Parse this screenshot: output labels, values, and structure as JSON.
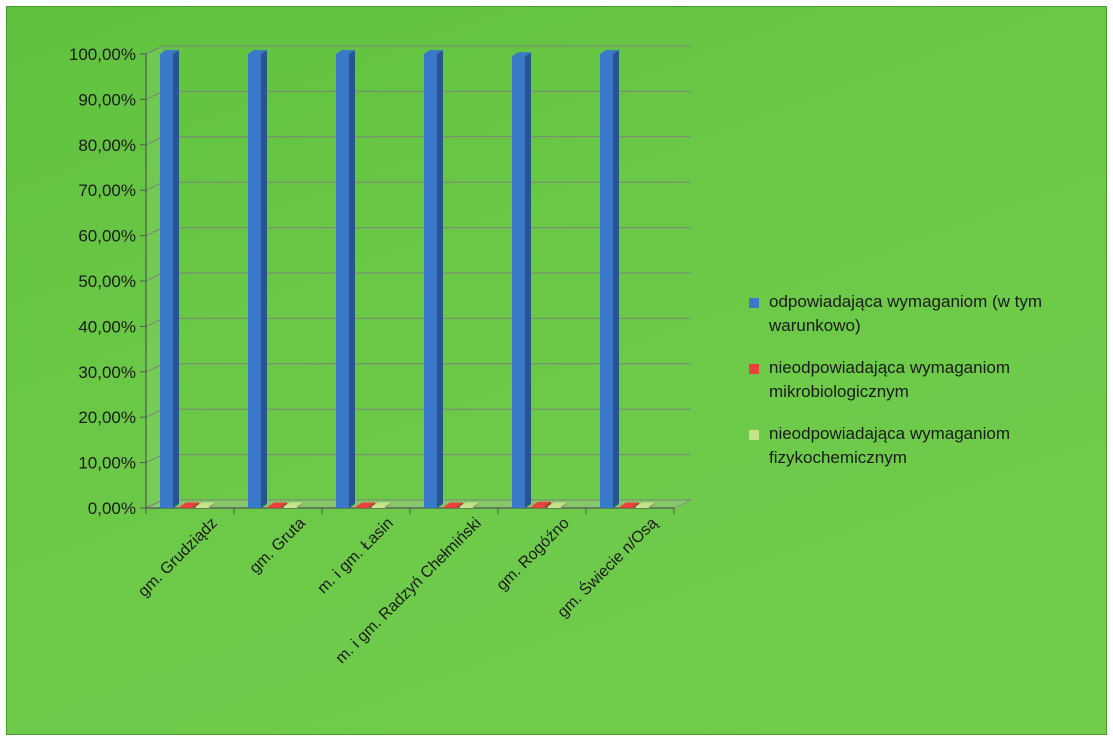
{
  "chart_data": {
    "type": "bar",
    "categories": [
      "gm. Grudziądz",
      "gm. Gruta",
      "m. i gm. Łasin",
      "m. i gm. Radzyń Chełmiński",
      "gm. Rogóźno",
      "gm. Świecie n/Osą"
    ],
    "series": [
      {
        "name": "odpowiadająca  wymaganiom (w tym warunkowo)",
        "values": [
          100,
          100,
          100,
          100,
          99.5,
          100
        ],
        "color": "#3a78c9"
      },
      {
        "name": "nieodpowiadająca wymaganiom mikrobiologicznym",
        "values": [
          0,
          0,
          0,
          0,
          0.5,
          0
        ],
        "color": "#e8413c"
      },
      {
        "name": "nieodpowiadająca wymaganiom fizykochemicznym",
        "values": [
          0,
          0,
          0,
          0,
          0,
          0
        ],
        "color": "#c7e38a"
      }
    ],
    "y_ticks": [
      "0,00%",
      "10,00%",
      "20,00%",
      "30,00%",
      "40,00%",
      "50,00%",
      "60,00%",
      "70,00%",
      "80,00%",
      "90,00%",
      "100,00%"
    ],
    "ylim": [
      0,
      100
    ],
    "grid": true,
    "legend_position": "right",
    "title": "",
    "xlabel": "",
    "ylabel": ""
  }
}
